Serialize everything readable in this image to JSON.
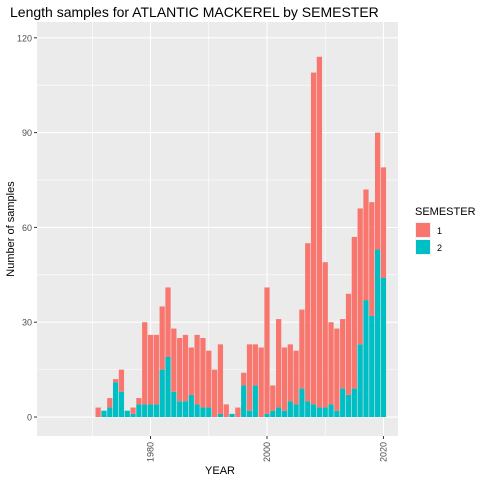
{
  "chart_data": {
    "type": "bar",
    "stacked": true,
    "title": "Length samples for ATLANTIC MACKEREL by SEMESTER",
    "xlabel": "YEAR",
    "ylabel": "Number of samples",
    "xlim": [
      1960.5,
      2022.5
    ],
    "ylim": [
      -6,
      125
    ],
    "x_ticks": [
      1980,
      2000,
      2020
    ],
    "y_ticks": [
      0,
      30,
      60,
      90,
      120
    ],
    "legend": {
      "title": "SEMESTER",
      "position": "right",
      "entries": [
        {
          "label": "1",
          "color": "#F8766D"
        },
        {
          "label": "2",
          "color": "#00BFC4"
        }
      ]
    },
    "years": [
      1970,
      1971,
      1972,
      1973,
      1974,
      1975,
      1976,
      1977,
      1978,
      1979,
      1980,
      1981,
      1982,
      1983,
      1984,
      1985,
      1986,
      1987,
      1988,
      1989,
      1990,
      1991,
      1992,
      1993,
      1994,
      1995,
      1996,
      1997,
      1998,
      1999,
      2000,
      2001,
      2002,
      2003,
      2004,
      2005,
      2006,
      2007,
      2008,
      2009,
      2010,
      2011,
      2012,
      2013,
      2014,
      2015,
      2016,
      2017,
      2018,
      2019,
      2020
    ],
    "series": [
      {
        "name": "1",
        "color": "#F8766D",
        "values": [
          0,
          3,
          0,
          3,
          1,
          7,
          0,
          2,
          2,
          26,
          22,
          22,
          20,
          22,
          20,
          20,
          21,
          15,
          22,
          22,
          18,
          15,
          22,
          4,
          0,
          3,
          4,
          21,
          13,
          22,
          40,
          8,
          28,
          20,
          18,
          17,
          25,
          50,
          105,
          111,
          46,
          26,
          26,
          22,
          32,
          48,
          43,
          35,
          36,
          37,
          35
        ]
      },
      {
        "name": "2",
        "color": "#00BFC4",
        "values": [
          0,
          0,
          2,
          3,
          11,
          8,
          2,
          1,
          4,
          4,
          4,
          4,
          15,
          19,
          8,
          5,
          5,
          7,
          4,
          3,
          3,
          0,
          1,
          0,
          1,
          0,
          10,
          2,
          10,
          0,
          1,
          2,
          3,
          2,
          5,
          4,
          9,
          5,
          4,
          3,
          3,
          4,
          2,
          9,
          7,
          9,
          23,
          37,
          32,
          53,
          44
        ]
      }
    ]
  }
}
